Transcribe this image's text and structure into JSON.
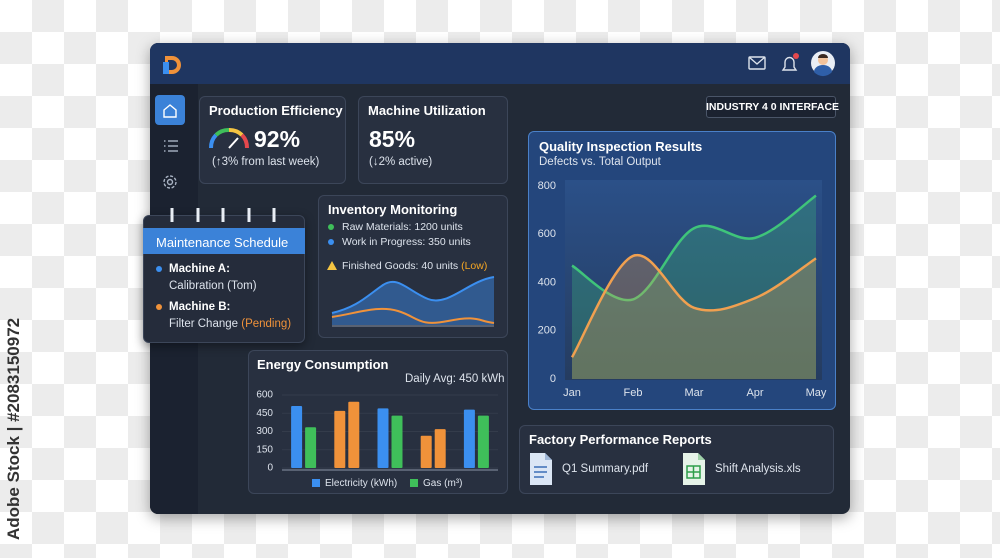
{
  "watermark": "Adobe Stock | #2083150972",
  "header": {
    "badge": "INDUSTRY 4 0 INTERFACE"
  },
  "production_efficiency": {
    "title": "Production Efficiency",
    "value": "92%",
    "change": "(↑3% from last week)"
  },
  "machine_utilization": {
    "title": "Machine Utilization",
    "value": "85%",
    "change": "(↓2% active)"
  },
  "maintenance": {
    "title": "Maintenance Schedule",
    "items": [
      {
        "machine": "Machine A:",
        "task": "Calibration (Tom)"
      },
      {
        "machine": "Machine B:",
        "task": "Filter Change",
        "status": "(Pending)"
      }
    ]
  },
  "inventory": {
    "title": "Inventory Monitoring",
    "items": [
      "Raw Materials: 1200 units",
      "Work in Progress: 350 units",
      "Finished Goods: 40 units"
    ],
    "alert": "(Low)"
  },
  "reports": {
    "title": "Factory Performance Reports",
    "files": [
      "Q1 Summary.pdf",
      "Shift Analysis.xls"
    ]
  },
  "chart_data": [
    {
      "type": "bar",
      "title": "Energy Consumption",
      "subtitle": "Daily Avg: 450 kWh",
      "categories": [
        null,
        null,
        null,
        null,
        null
      ],
      "series": [
        {
          "name": "Electricity (kWh)",
          "color": "#3b8ff0",
          "colors": [
            "#3b8ff0",
            "#f0923a",
            "#3b8ff0",
            "#f0923a",
            "#3b8ff0"
          ],
          "values": [
            510,
            470,
            490,
            265,
            480
          ]
        },
        {
          "name": "Gas (m³)",
          "color": "#3fbf5a",
          "colors": [
            "#3fbf5a",
            "#f0923a",
            "#3fbf5a",
            "#f0923a",
            "#3fbf5a"
          ],
          "values": [
            335,
            545,
            430,
            320,
            430
          ]
        }
      ],
      "ylim": [
        0,
        600
      ],
      "yticks": [
        0,
        150,
        300,
        450,
        600
      ],
      "grid": true
    },
    {
      "type": "line",
      "title": "Quality Inspection Results",
      "subtitle": "Defects vs. Total Output",
      "categories": [
        "Jan",
        "Feb",
        "Mar",
        "Apr",
        "May"
      ],
      "series": [
        {
          "color": "#3fc47a",
          "values": [
            470,
            330,
            625,
            585,
            760
          ]
        },
        {
          "color": "#f0a050",
          "values": [
            90,
            510,
            295,
            335,
            500
          ]
        }
      ],
      "ylim": [
        0,
        800
      ],
      "yticks": [
        0,
        200,
        400,
        600,
        800
      ],
      "area": true,
      "grid": false
    }
  ]
}
